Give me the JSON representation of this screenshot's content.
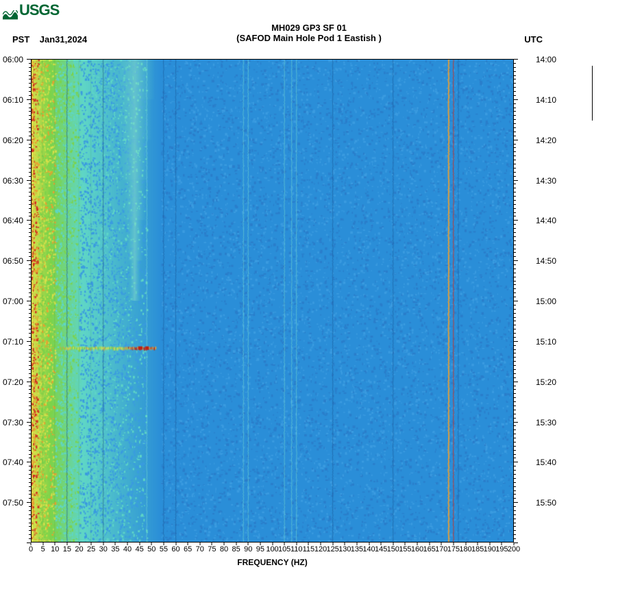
{
  "logo_text": "USGS",
  "title_line1": "MH029 GP3 SF 01",
  "title_line2": "(SAFOD Main Hole Pod 1 Eastish )",
  "pst_label": "PST",
  "date_label": "Jan31,2024",
  "utc_label": "UTC",
  "x_axis_label": "FREQUENCY (HZ)",
  "spectrogram": {
    "type": "heatmap",
    "x_range": [
      0,
      200
    ],
    "x_tick_step": 5,
    "x_label_fontsize": 11,
    "y_left_start": "06:00",
    "y_left_ticks": [
      "06:00",
      "06:10",
      "06:20",
      "06:30",
      "06:40",
      "06:50",
      "07:00",
      "07:10",
      "07:20",
      "07:30",
      "07:40",
      "07:50"
    ],
    "y_right_ticks": [
      "14:00",
      "14:10",
      "14:20",
      "14:30",
      "14:40",
      "14:50",
      "15:00",
      "15:10",
      "15:20",
      "15:30",
      "15:40",
      "15:50"
    ],
    "y_minor_per_major": 10,
    "colors": {
      "bg_main": "#2a8ed8",
      "bg_noise_a": "#3a9be0",
      "bg_noise_b": "#2a7ecb",
      "low_freq_band": "#5fd6c6",
      "low_freq_yellow": "#d6e04a",
      "low_freq_green": "#7dd34a",
      "low_freq_orange": "#e8a030",
      "low_freq_red": "#d03020",
      "vline_dark": "#1a5a9a",
      "vline_cyan": "#7ae0d0",
      "vline_orange": "#f0a030",
      "vline_red": "#d03020",
      "burst_red": "#c02010"
    },
    "low_band_width_hz": 30,
    "vertical_lines_hz": [
      15,
      30,
      48,
      55,
      60,
      88,
      90,
      105,
      108,
      110,
      125,
      150,
      173,
      175,
      177
    ],
    "vertical_line_styles": {
      "15": "dark",
      "30": "dark",
      "48": "cyan",
      "55": "dark",
      "60": "dark",
      "88": "cyan",
      "90": "cyan",
      "105": "cyan",
      "108": "cyan",
      "110": "cyan",
      "125": "dark",
      "150": "dark",
      "173": "orange",
      "175": "red",
      "177": "dark"
    },
    "burst": {
      "time_row": 7,
      "hz_start": 12,
      "hz_end": 52,
      "fade_band": [
        40,
        52
      ]
    },
    "bump_region": {
      "hz_center": 43,
      "hz_width": 8,
      "row_start": 0,
      "row_end": 6
    }
  },
  "sidebar_line_height": 80,
  "footmark": ""
}
